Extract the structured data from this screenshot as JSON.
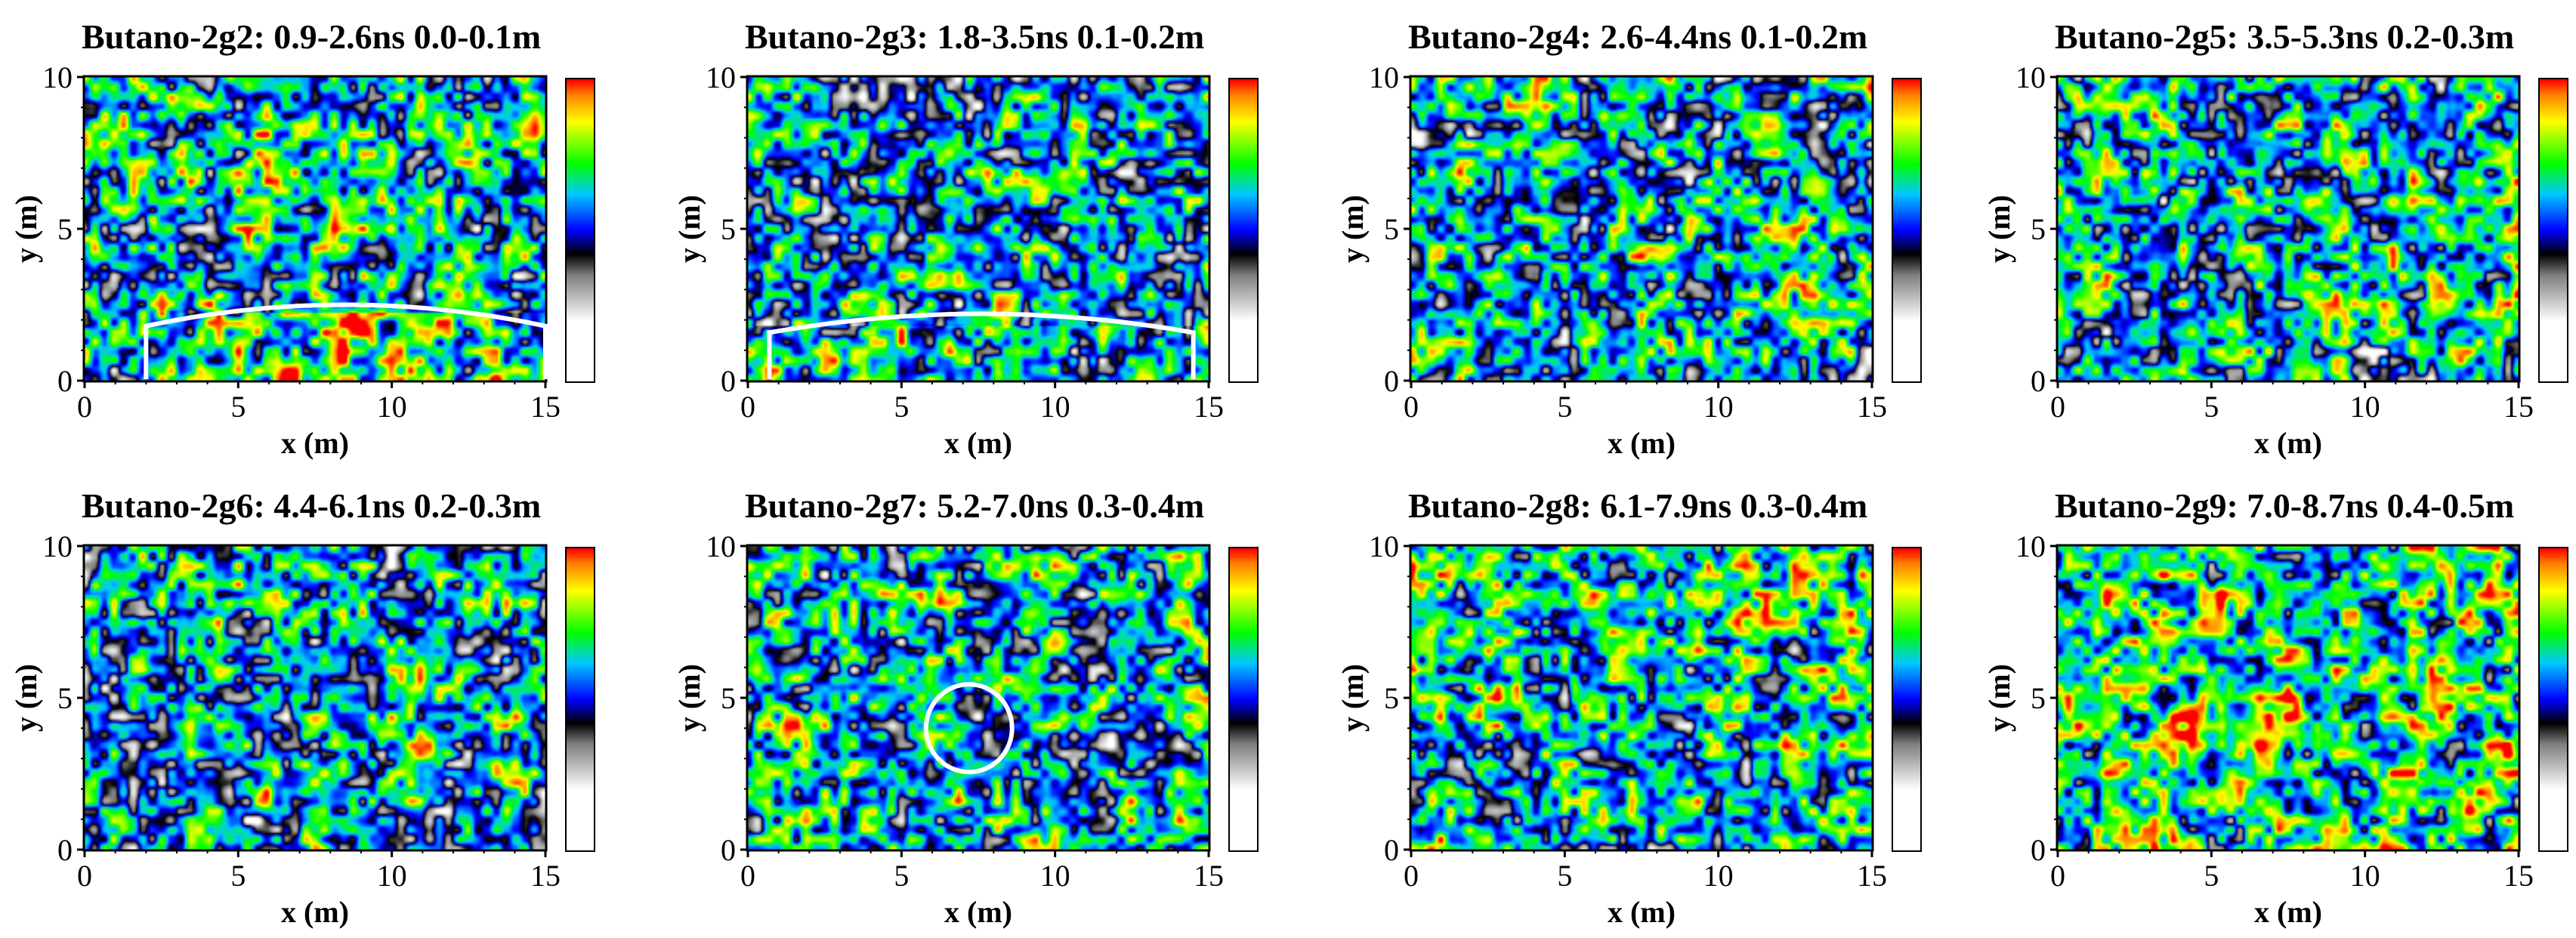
{
  "chart_data": [
    {
      "type": "heatmap",
      "title": "Butano-2g2: 0.9-2.6ns  0.0-0.1m",
      "xlabel": "x (m)",
      "ylabel": "y (m)",
      "xlim": [
        0,
        15
      ],
      "ylim": [
        0,
        10
      ],
      "x_ticks": [
        "0",
        "5",
        "10",
        "15"
      ],
      "y_ticks": [
        "0",
        "5",
        "10"
      ],
      "colormap": [
        "#ffffff",
        "#808080",
        "#000000",
        "#0000ff",
        "#00c8ff",
        "#00ff00",
        "#ffff00",
        "#ff8000",
        "#ff0000"
      ],
      "overlay": {
        "shape": "arc",
        "color": "#ffffff",
        "x": [
          2,
          15
        ],
        "y_peak": 2.5
      }
    },
    {
      "type": "heatmap",
      "title": "Butano-2g3: 1.8-3.5ns  0.1-0.2m",
      "xlabel": "x (m)",
      "ylabel": "y (m)",
      "xlim": [
        0,
        15
      ],
      "ylim": [
        0,
        10
      ],
      "x_ticks": [
        "0",
        "5",
        "10",
        "15"
      ],
      "y_ticks": [
        "0",
        "5",
        "10"
      ],
      "colormap": [
        "#ffffff",
        "#808080",
        "#000000",
        "#0000ff",
        "#00c8ff",
        "#00ff00",
        "#ffff00",
        "#ff8000",
        "#ff0000"
      ],
      "overlay": {
        "shape": "arc",
        "color": "#ffffff",
        "x": [
          0.7,
          14.5
        ],
        "y_peak": 2.2
      }
    },
    {
      "type": "heatmap",
      "title": "Butano-2g4: 2.6-4.4ns  0.1-0.2m",
      "xlabel": "x (m)",
      "ylabel": "y (m)",
      "xlim": [
        0,
        15
      ],
      "ylim": [
        0,
        10
      ],
      "x_ticks": [
        "0",
        "5",
        "10",
        "15"
      ],
      "y_ticks": [
        "0",
        "5",
        "10"
      ],
      "colormap": [
        "#ffffff",
        "#808080",
        "#000000",
        "#0000ff",
        "#00c8ff",
        "#00ff00",
        "#ffff00",
        "#ff8000",
        "#ff0000"
      ]
    },
    {
      "type": "heatmap",
      "title": "Butano-2g5: 3.5-5.3ns  0.2-0.3m",
      "xlabel": "x (m)",
      "ylabel": "y (m)",
      "xlim": [
        0,
        15
      ],
      "ylim": [
        0,
        10
      ],
      "x_ticks": [
        "0",
        "5",
        "10",
        "15"
      ],
      "y_ticks": [
        "0",
        "5",
        "10"
      ],
      "colormap": [
        "#ffffff",
        "#808080",
        "#000000",
        "#0000ff",
        "#00c8ff",
        "#00ff00",
        "#ffff00",
        "#ff8000",
        "#ff0000"
      ]
    },
    {
      "type": "heatmap",
      "title": "Butano-2g6: 4.4-6.1ns  0.2-0.3m",
      "xlabel": "x (m)",
      "ylabel": "y (m)",
      "xlim": [
        0,
        15
      ],
      "ylim": [
        0,
        10
      ],
      "x_ticks": [
        "0",
        "5",
        "10",
        "15"
      ],
      "y_ticks": [
        "0",
        "5",
        "10"
      ],
      "colormap": [
        "#ffffff",
        "#808080",
        "#000000",
        "#0000ff",
        "#00c8ff",
        "#00ff00",
        "#ffff00",
        "#ff8000",
        "#ff0000"
      ]
    },
    {
      "type": "heatmap",
      "title": "Butano-2g7: 5.2-7.0ns  0.3-0.4m",
      "xlabel": "x (m)",
      "ylabel": "y (m)",
      "xlim": [
        0,
        15
      ],
      "ylim": [
        0,
        10
      ],
      "x_ticks": [
        "0",
        "5",
        "10",
        "15"
      ],
      "y_ticks": [
        "0",
        "5",
        "10"
      ],
      "colormap": [
        "#ffffff",
        "#808080",
        "#000000",
        "#0000ff",
        "#00c8ff",
        "#00ff00",
        "#ffff00",
        "#ff8000",
        "#ff0000"
      ],
      "overlay": {
        "shape": "circle",
        "color": "#ffffff",
        "cx": 7.2,
        "cy": 4.0,
        "r": 1.4
      }
    },
    {
      "type": "heatmap",
      "title": "Butano-2g8: 6.1-7.9ns  0.3-0.4m",
      "xlabel": "x (m)",
      "ylabel": "y (m)",
      "xlim": [
        0,
        15
      ],
      "ylim": [
        0,
        10
      ],
      "x_ticks": [
        "0",
        "5",
        "10",
        "15"
      ],
      "y_ticks": [
        "0",
        "5",
        "10"
      ],
      "colormap": [
        "#ffffff",
        "#808080",
        "#000000",
        "#0000ff",
        "#00c8ff",
        "#00ff00",
        "#ffff00",
        "#ff8000",
        "#ff0000"
      ]
    },
    {
      "type": "heatmap",
      "title": "Butano-2g9: 7.0-8.7ns  0.4-0.5m",
      "xlabel": "x (m)",
      "ylabel": "y (m)",
      "xlim": [
        0,
        15
      ],
      "ylim": [
        0,
        10
      ],
      "x_ticks": [
        "0",
        "5",
        "10",
        "15"
      ],
      "y_ticks": [
        "0",
        "5",
        "10"
      ],
      "colormap": [
        "#ffffff",
        "#808080",
        "#000000",
        "#0000ff",
        "#00c8ff",
        "#00ff00",
        "#ffff00",
        "#ff8000",
        "#ff0000"
      ]
    }
  ]
}
